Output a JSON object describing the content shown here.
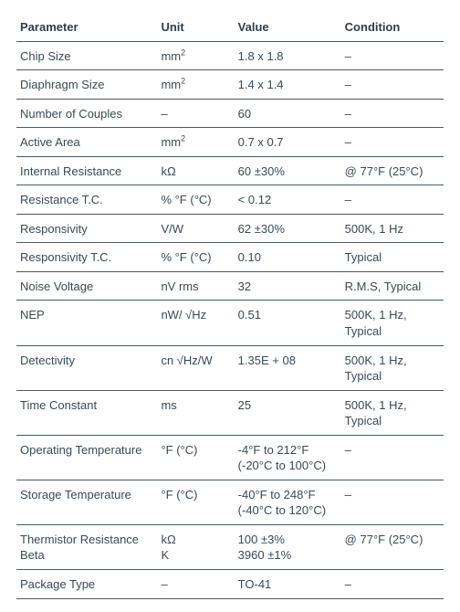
{
  "table": {
    "columns": [
      "Parameter",
      "Unit",
      "Value",
      "Condition"
    ],
    "rows": [
      {
        "param": "Chip Size",
        "unit_html": "mm<sup>2</sup>",
        "value": "1.8 x 1.8",
        "cond": "–"
      },
      {
        "param": "Diaphragm Size",
        "unit_html": "mm<sup>2</sup>",
        "value": "1.4 x 1.4",
        "cond": "–"
      },
      {
        "param": "Number of Couples",
        "unit_html": "–",
        "value": "60",
        "cond": "–"
      },
      {
        "param": "Active Area",
        "unit_html": "mm<sup>2</sup>",
        "value": "0.7 x 0.7",
        "cond": "–"
      },
      {
        "param": "Internal Resistance",
        "unit_html": "kΩ",
        "value": "60 ±30%",
        "cond": "@ 77°F (25°C)"
      },
      {
        "param": "Resistance T.C.",
        "unit_html": "% °F (°C)",
        "value": "< 0.12",
        "cond": "–"
      },
      {
        "param": "Responsivity",
        "unit_html": "V/W",
        "value": "62 ±30%",
        "cond": "500K, 1 Hz"
      },
      {
        "param": "Responsivity T.C.",
        "unit_html": "% °F (°C)",
        "value": "0.10",
        "cond": "Typical"
      },
      {
        "param": "Noise Voltage",
        "unit_html": "nV rms",
        "value": "32",
        "cond": "R.M.S, Typical"
      },
      {
        "param": "NEP",
        "unit_html": "nW/ √Hz",
        "value": "0.51",
        "cond": "500K, 1 Hz, Typical"
      },
      {
        "param": "Detectivity",
        "unit_html": "cn √Hz/W",
        "value": "1.35E + 08",
        "cond": "500K, 1 Hz, Typical"
      },
      {
        "param": "Time Constant",
        "unit_html": "ms",
        "value": "25",
        "cond": "500K, 1 Hz, Typical"
      },
      {
        "param": "Operating Temperature",
        "unit_html": "°F (°C)",
        "value": "-4°F to 212°F\n(-20°C to 100°C)",
        "cond": "–"
      },
      {
        "param": "Storage Temperature",
        "unit_html": "°F (°C)",
        "value": "-40°F to 248°F\n(-40°C to 120°C)",
        "cond": "–"
      },
      {
        "param": "Thermistor Resistance\nBeta",
        "unit_html": "kΩ\nK",
        "value": "100 ±3%\n3960 ±1%",
        "cond": "@ 77°F (25°C)"
      },
      {
        "param": "Package Type",
        "unit_html": "–",
        "value": "TO-41",
        "cond": "–"
      }
    ]
  }
}
